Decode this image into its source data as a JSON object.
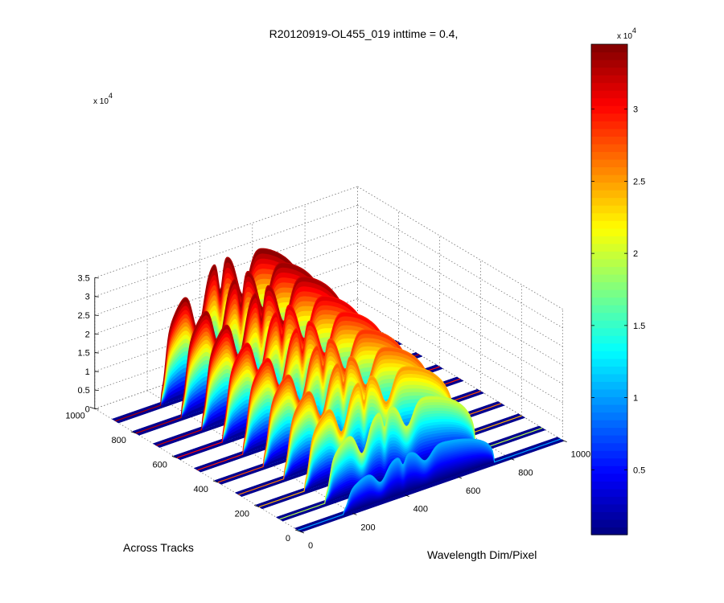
{
  "chart_data": {
    "type": "surface",
    "title": "R20120919-OL455_019 inttime = 0.4,",
    "xlabel": "Wavelength Dim/Pixel",
    "ylabel": "Across Tracks",
    "zlabel": "",
    "x_ticks": [
      "0",
      "200",
      "400",
      "600",
      "800",
      "1000"
    ],
    "y_ticks": [
      "0",
      "200",
      "400",
      "600",
      "800",
      "1000"
    ],
    "z_ticks": [
      "0",
      "0.5",
      "1",
      "1.5",
      "2",
      "2.5",
      "3",
      "3.5"
    ],
    "z_exponent_label": "x 10",
    "z_exponent": "4",
    "xlim": [
      0,
      1000
    ],
    "ylim": [
      0,
      1000
    ],
    "zlim": [
      0,
      35000
    ],
    "grid": true,
    "colormap": "jet",
    "colorbar": {
      "ticks": [
        "0.5",
        "1",
        "1.5",
        "2",
        "2.5",
        "3"
      ],
      "tick_values": [
        5000,
        10000,
        15000,
        20000,
        25000,
        30000
      ],
      "range": [
        500,
        34500
      ],
      "exponent_label": "x 10",
      "exponent": "4"
    },
    "surface_model": {
      "x_range": [
        0,
        1000
      ],
      "ridge_x": [
        10,
        100,
        200,
        300,
        400,
        500,
        600,
        700,
        800,
        900
      ],
      "ridge_peaks": [
        10500,
        20000,
        25000,
        27000,
        28500,
        30000,
        31000,
        33000,
        33500,
        34000
      ],
      "ridge_width": 32,
      "envelope_center": 460,
      "envelope_halfwidth": 285,
      "dips": [
        {
          "center": 315,
          "width": 30,
          "depth": 0.45
        },
        {
          "center": 485,
          "width": 32,
          "depth": 0.35
        },
        {
          "center": 180,
          "width": 15,
          "depth": 0.55
        },
        {
          "center": 400,
          "width": 12,
          "depth": 0.25
        }
      ]
    }
  }
}
